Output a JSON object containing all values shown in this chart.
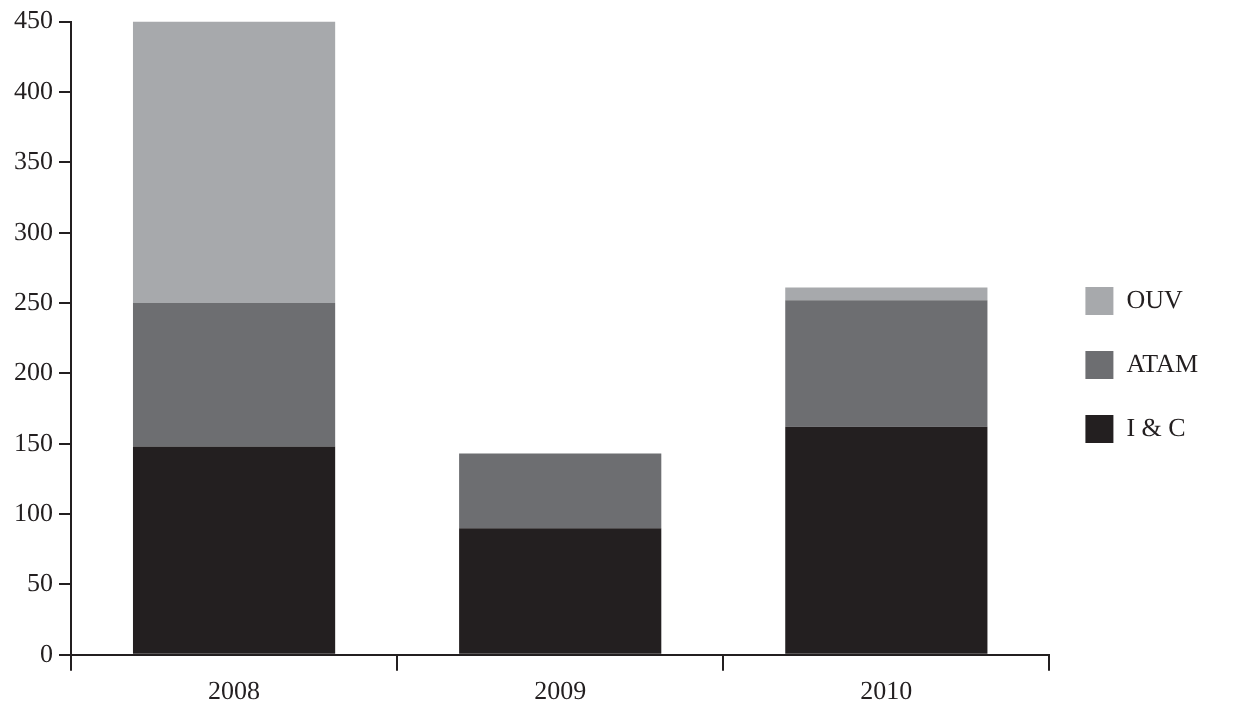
{
  "chart_data": {
    "type": "bar",
    "stacked": true,
    "categories": [
      "2008",
      "2009",
      "2010"
    ],
    "series": [
      {
        "name": "I & C",
        "color": "#231f20",
        "values": [
          148,
          90,
          162
        ]
      },
      {
        "name": "ATAM",
        "color": "#6d6e71",
        "values": [
          102,
          53,
          90
        ]
      },
      {
        "name": "OUV",
        "color": "#a7a9ac",
        "values": [
          200,
          null,
          9
        ]
      }
    ],
    "ylim": [
      0,
      450
    ],
    "yticks": [
      0,
      50,
      100,
      150,
      200,
      250,
      300,
      350,
      400,
      450
    ],
    "grid": false,
    "legend": "right"
  }
}
